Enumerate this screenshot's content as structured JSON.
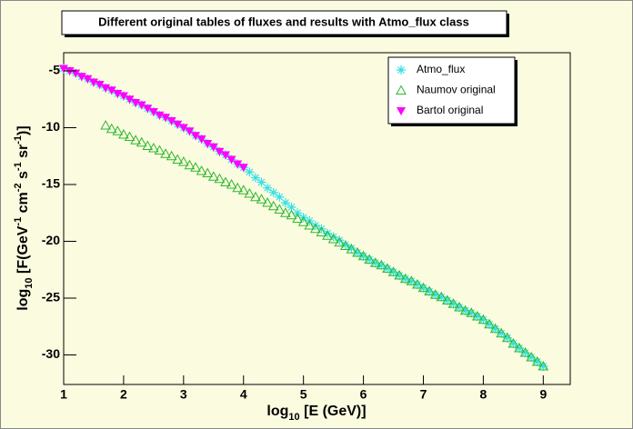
{
  "chart_data": {
    "type": "scatter",
    "title": "Different original tables of fluxes and results with Atmo_flux class",
    "xlabel_parts": [
      {
        "text": "log"
      },
      {
        "text": "10",
        "shift": "sub"
      },
      {
        "text": " [E (GeV)]"
      }
    ],
    "ylabel_parts": [
      {
        "text": "log"
      },
      {
        "text": "10",
        "shift": "sub"
      },
      {
        "text": " [F(GeV"
      },
      {
        "text": "-1",
        "shift": "sup"
      },
      {
        "text": " cm"
      },
      {
        "text": "-2",
        "shift": "sup"
      },
      {
        "text": " s"
      },
      {
        "text": "-1",
        "shift": "sup"
      },
      {
        "text": " sr"
      },
      {
        "text": "-1",
        "shift": "sup"
      },
      {
        "text": ")]"
      }
    ],
    "xlim": [
      1,
      9.45
    ],
    "ylim": [
      -32.6,
      -3.4
    ],
    "xticks": [
      1,
      2,
      3,
      4,
      5,
      6,
      7,
      8,
      9
    ],
    "yticks": [
      -5,
      -10,
      -15,
      -20,
      -25,
      -30
    ],
    "grid": false,
    "legend": "top-right",
    "series": [
      {
        "name": "Atmo_flux",
        "color": "#33e0e8",
        "marker": "asterisk",
        "x": [
          1.0,
          1.1,
          1.2,
          1.3,
          1.4,
          1.5,
          1.6,
          1.7,
          1.8,
          1.9,
          2.0,
          2.1,
          2.2,
          2.3,
          2.4,
          2.5,
          2.6,
          2.7,
          2.8,
          2.9,
          3.0,
          3.1,
          3.2,
          3.3,
          3.4,
          3.5,
          3.6,
          3.7,
          3.8,
          3.9,
          4.0,
          4.1,
          4.2,
          4.3,
          4.4,
          4.5,
          4.6,
          4.7,
          4.8,
          4.9,
          5.0,
          5.1,
          5.2,
          5.3,
          5.4,
          5.5,
          5.6,
          5.7,
          5.8,
          5.9,
          6.0,
          6.1,
          6.2,
          6.3,
          6.4,
          6.5,
          6.6,
          6.7,
          6.8,
          6.9,
          7.0,
          7.1,
          7.2,
          7.3,
          7.4,
          7.5,
          7.6,
          7.7,
          7.8,
          7.9,
          8.0,
          8.1,
          8.2,
          8.3,
          8.4,
          8.5,
          8.6,
          8.7,
          8.8,
          8.9,
          9.0
        ],
        "values": [
          -4.8,
          -5.0,
          -5.2,
          -5.5,
          -5.7,
          -6.0,
          -6.2,
          -6.5,
          -6.7,
          -7.0,
          -7.2,
          -7.5,
          -7.8,
          -8.0,
          -8.3,
          -8.6,
          -8.9,
          -9.1,
          -9.4,
          -9.7,
          -10.0,
          -10.3,
          -10.7,
          -11.0,
          -11.4,
          -11.7,
          -12.1,
          -12.4,
          -12.8,
          -13.2,
          -13.5,
          -13.9,
          -14.4,
          -14.8,
          -15.3,
          -15.7,
          -16.1,
          -16.6,
          -17.0,
          -17.5,
          -17.9,
          -18.2,
          -18.6,
          -18.9,
          -19.3,
          -19.6,
          -19.9,
          -20.3,
          -20.6,
          -21.0,
          -21.3,
          -21.6,
          -21.9,
          -22.1,
          -22.4,
          -22.7,
          -23.0,
          -23.3,
          -23.5,
          -23.8,
          -24.1,
          -24.4,
          -24.7,
          -24.9,
          -25.2,
          -25.5,
          -25.8,
          -26.1,
          -26.3,
          -26.6,
          -26.9,
          -27.3,
          -27.7,
          -28.1,
          -28.5,
          -29.0,
          -29.4,
          -29.8,
          -30.2,
          -30.6,
          -31.0
        ]
      },
      {
        "name": "Naumov original",
        "color": "#2eb82e",
        "marker": "triangle-open",
        "x": [
          1.7,
          1.8,
          1.9,
          2.0,
          2.1,
          2.2,
          2.3,
          2.4,
          2.5,
          2.6,
          2.7,
          2.8,
          2.9,
          3.0,
          3.1,
          3.2,
          3.3,
          3.4,
          3.5,
          3.6,
          3.7,
          3.8,
          3.9,
          4.0,
          4.1,
          4.2,
          4.3,
          4.4,
          4.5,
          4.6,
          4.7,
          4.8,
          4.9,
          5.0,
          5.1,
          5.2,
          5.3,
          5.4,
          5.5,
          5.6,
          5.7,
          5.8,
          5.9,
          6.0,
          6.1,
          6.2,
          6.3,
          6.4,
          6.5,
          6.6,
          6.7,
          6.8,
          6.9,
          7.0,
          7.1,
          7.2,
          7.3,
          7.4,
          7.5,
          7.6,
          7.7,
          7.8,
          7.9,
          8.0,
          8.1,
          8.2,
          8.3,
          8.4,
          8.5,
          8.6,
          8.7,
          8.8,
          8.9,
          9.0
        ],
        "values": [
          -9.8,
          -10.1,
          -10.3,
          -10.6,
          -10.8,
          -11.1,
          -11.3,
          -11.6,
          -11.8,
          -12.0,
          -12.3,
          -12.5,
          -12.8,
          -13.0,
          -13.3,
          -13.5,
          -13.8,
          -14.0,
          -14.3,
          -14.5,
          -14.8,
          -15.0,
          -15.3,
          -15.5,
          -15.8,
          -16.1,
          -16.3,
          -16.6,
          -16.9,
          -17.2,
          -17.5,
          -17.7,
          -18.0,
          -18.3,
          -18.6,
          -18.9,
          -19.2,
          -19.5,
          -19.8,
          -20.1,
          -20.4,
          -20.7,
          -21.0,
          -21.3,
          -21.6,
          -21.9,
          -22.1,
          -22.4,
          -22.7,
          -23.0,
          -23.3,
          -23.5,
          -23.8,
          -24.1,
          -24.4,
          -24.7,
          -24.9,
          -25.2,
          -25.5,
          -25.8,
          -26.1,
          -26.3,
          -26.6,
          -26.9,
          -27.3,
          -27.7,
          -28.1,
          -28.5,
          -29.0,
          -29.4,
          -29.8,
          -30.2,
          -30.6,
          -31.0
        ]
      },
      {
        "name": "Bartol original",
        "color": "#ff00ff",
        "marker": "triangle-down",
        "x": [
          1.0,
          1.1,
          1.2,
          1.3,
          1.4,
          1.5,
          1.6,
          1.7,
          1.8,
          1.9,
          2.0,
          2.1,
          2.2,
          2.3,
          2.4,
          2.5,
          2.6,
          2.7,
          2.8,
          2.9,
          3.0,
          3.1,
          3.2,
          3.3,
          3.4,
          3.5,
          3.6,
          3.7,
          3.8,
          3.9,
          4.0
        ],
        "values": [
          -4.8,
          -5.0,
          -5.2,
          -5.5,
          -5.7,
          -6.0,
          -6.2,
          -6.5,
          -6.7,
          -7.0,
          -7.2,
          -7.5,
          -7.8,
          -8.0,
          -8.3,
          -8.6,
          -8.9,
          -9.1,
          -9.4,
          -9.7,
          -10.0,
          -10.3,
          -10.7,
          -11.0,
          -11.4,
          -11.7,
          -12.1,
          -12.4,
          -12.8,
          -13.2,
          -13.5
        ]
      }
    ]
  }
}
